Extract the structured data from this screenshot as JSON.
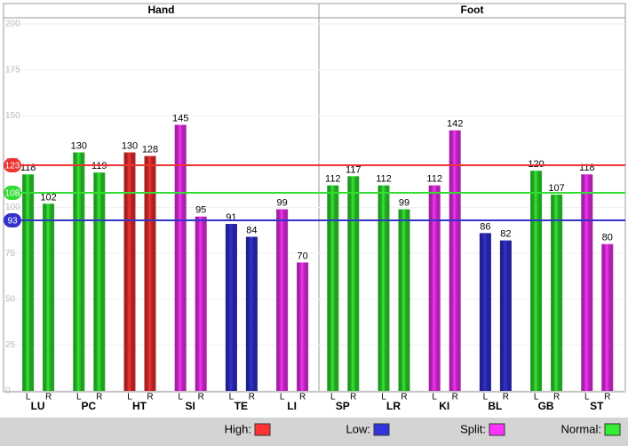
{
  "chart_data": {
    "type": "bar",
    "ylim": [
      0,
      200
    ],
    "yticks": [
      0,
      25,
      50,
      75,
      100,
      125,
      150,
      175,
      200
    ],
    "grid": true,
    "reference_lines": [
      {
        "value": 123,
        "color": "#ee3333"
      },
      {
        "value": 108,
        "color": "#33dd33"
      },
      {
        "value": 93,
        "color": "#3333cc"
      }
    ],
    "legend": [
      {
        "label": "High:",
        "color": "#ff3333"
      },
      {
        "label": "Low:",
        "color": "#3333dd"
      },
      {
        "label": "Split:",
        "color": "#ff33ff"
      },
      {
        "label": "Normal:",
        "color": "#33ee33"
      }
    ],
    "panels": [
      {
        "title": "Hand",
        "categories": [
          "LU",
          "PC",
          "HT",
          "SI",
          "TE",
          "LI"
        ],
        "colors": [
          "#33ee33",
          "#33ee33",
          "#ff3333",
          "#ff33ff",
          "#3333dd",
          "#ff33ff"
        ],
        "series": [
          {
            "name": "L",
            "values": [
              118,
              130,
              130,
              145,
              91,
              99
            ]
          },
          {
            "name": "R",
            "values": [
              102,
              119,
              128,
              95,
              84,
              70
            ]
          }
        ]
      },
      {
        "title": "Foot",
        "categories": [
          "SP",
          "LR",
          "KI",
          "BL",
          "GB",
          "ST"
        ],
        "colors": [
          "#33ee33",
          "#33ee33",
          "#ff33ff",
          "#3333dd",
          "#33ee33",
          "#ff33ff"
        ],
        "series": [
          {
            "name": "L",
            "values": [
              112,
              112,
              112,
              86,
              120,
              118
            ]
          },
          {
            "name": "R",
            "values": [
              117,
              99,
              142,
              82,
              107,
              80
            ]
          }
        ]
      }
    ]
  }
}
